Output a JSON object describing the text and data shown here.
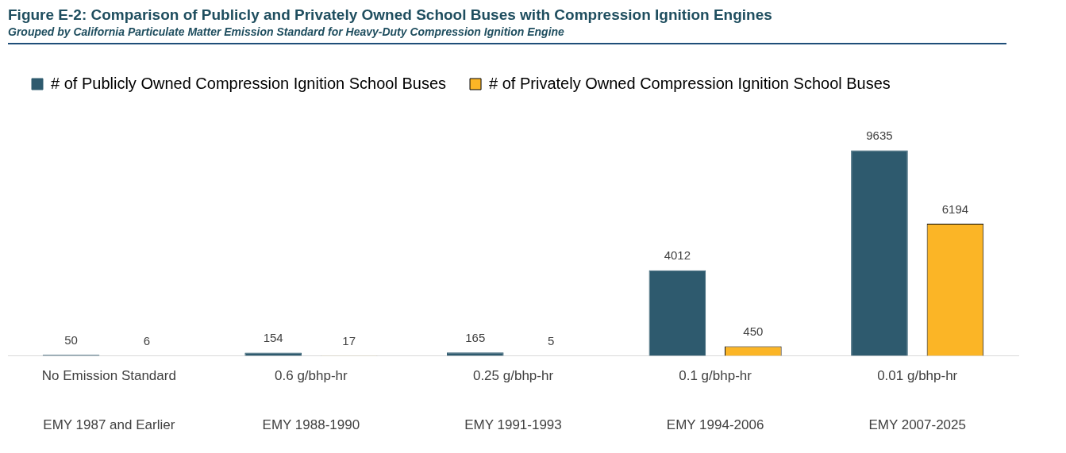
{
  "chart_data": {
    "type": "bar",
    "title": "Figure E-2: Comparison of Publicly and Privately Owned School Buses with Compression Ignition Engines",
    "subtitle": "Grouped by California Particulate Matter Emission Standard for Heavy-Duty Compression Ignition Engine",
    "categories": [
      "No Emission Standard",
      "0.6 g/bhp-hr",
      "0.25 g/bhp-hr",
      "0.1 g/bhp-hr",
      "0.01 g/bhp-hr"
    ],
    "annotations": [
      "EMY 1987 and Earlier",
      "EMY 1988-1990",
      "EMY 1991-1993",
      "EMY 1994-2006",
      "EMY 2007-2025"
    ],
    "series": [
      {
        "name": "# of Publicly Owned Compression Ignition School Buses",
        "color": "#2e5a6e",
        "values": [
          50,
          154,
          165,
          4012,
          9635
        ]
      },
      {
        "name": "# of Privately Owned Compression Ignition School Buses",
        "color": "#fbb526",
        "values": [
          6,
          17,
          5,
          450,
          6194
        ]
      }
    ],
    "data_labels": true,
    "grid": false,
    "legend": "top left"
  }
}
